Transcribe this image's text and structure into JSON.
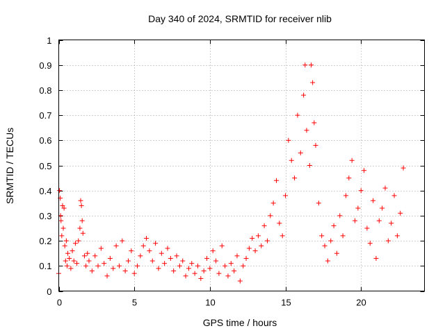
{
  "chart_data": {
    "type": "scatter",
    "title": "Day 340 of 2024, SRMTID for receiver nlib",
    "xlabel": "GPS time / hours",
    "ylabel": "SRMTID / TECUs",
    "xlim": [
      0,
      24.2
    ],
    "ylim": [
      0,
      1
    ],
    "xticks": [
      0,
      5,
      10,
      15,
      20
    ],
    "yticks": [
      0,
      0.1,
      0.2,
      0.3,
      0.4,
      0.5,
      0.6,
      0.7,
      0.8,
      0.9,
      1
    ],
    "xtick_labels": [
      "0",
      "5",
      "10",
      "15",
      "20"
    ],
    "ytick_labels": [
      "0",
      "0.1",
      "0.2",
      "0.3",
      "0.4",
      "0.5",
      "0.6",
      "0.7",
      "0.8",
      "0.9",
      "1"
    ],
    "grid": true,
    "marker": "+",
    "color": "#ff0000",
    "series": [
      {
        "name": "nlib",
        "points": [
          [
            0.0,
            0.07
          ],
          [
            0.05,
            0.4
          ],
          [
            0.1,
            0.37
          ],
          [
            0.12,
            0.3
          ],
          [
            0.15,
            0.28
          ],
          [
            0.2,
            0.22
          ],
          [
            0.25,
            0.34
          ],
          [
            0.3,
            0.25
          ],
          [
            0.35,
            0.33
          ],
          [
            0.4,
            0.18
          ],
          [
            0.45,
            0.12
          ],
          [
            0.5,
            0.2
          ],
          [
            0.55,
            0.1
          ],
          [
            0.6,
            0.15
          ],
          [
            0.7,
            0.13
          ],
          [
            0.8,
            0.09
          ],
          [
            0.9,
            0.16
          ],
          [
            1.0,
            0.12
          ],
          [
            1.1,
            0.19
          ],
          [
            1.2,
            0.11
          ],
          [
            1.3,
            0.2
          ],
          [
            1.4,
            0.25
          ],
          [
            1.45,
            0.36
          ],
          [
            1.5,
            0.34
          ],
          [
            1.55,
            0.28
          ],
          [
            1.6,
            0.23
          ],
          [
            1.7,
            0.14
          ],
          [
            1.8,
            0.1
          ],
          [
            1.9,
            0.15
          ],
          [
            2.0,
            0.12
          ],
          [
            2.2,
            0.08
          ],
          [
            2.4,
            0.14
          ],
          [
            2.6,
            0.1
          ],
          [
            2.8,
            0.17
          ],
          [
            3.0,
            0.11
          ],
          [
            3.2,
            0.06
          ],
          [
            3.4,
            0.13
          ],
          [
            3.6,
            0.09
          ],
          [
            3.8,
            0.18
          ],
          [
            4.0,
            0.1
          ],
          [
            4.2,
            0.2
          ],
          [
            4.4,
            0.08
          ],
          [
            4.6,
            0.12
          ],
          [
            4.8,
            0.16
          ],
          [
            5.0,
            0.07
          ],
          [
            5.2,
            0.1
          ],
          [
            5.4,
            0.14
          ],
          [
            5.6,
            0.18
          ],
          [
            5.8,
            0.21
          ],
          [
            6.0,
            0.16
          ],
          [
            6.2,
            0.12
          ],
          [
            6.4,
            0.19
          ],
          [
            6.6,
            0.09
          ],
          [
            6.8,
            0.15
          ],
          [
            7.0,
            0.11
          ],
          [
            7.2,
            0.17
          ],
          [
            7.4,
            0.13
          ],
          [
            7.6,
            0.08
          ],
          [
            7.8,
            0.14
          ],
          [
            8.0,
            0.1
          ],
          [
            8.2,
            0.12
          ],
          [
            8.4,
            0.06
          ],
          [
            8.6,
            0.09
          ],
          [
            8.8,
            0.11
          ],
          [
            9.0,
            0.07
          ],
          [
            9.2,
            0.1
          ],
          [
            9.4,
            0.05
          ],
          [
            9.6,
            0.08
          ],
          [
            9.8,
            0.13
          ],
          [
            10.0,
            0.09
          ],
          [
            10.2,
            0.16
          ],
          [
            10.4,
            0.12
          ],
          [
            10.6,
            0.07
          ],
          [
            10.8,
            0.18
          ],
          [
            11.0,
            0.1
          ],
          [
            11.2,
            0.06
          ],
          [
            11.4,
            0.11
          ],
          [
            11.6,
            0.08
          ],
          [
            11.8,
            0.14
          ],
          [
            12.0,
            0.04
          ],
          [
            12.2,
            0.1
          ],
          [
            12.4,
            0.13
          ],
          [
            12.6,
            0.17
          ],
          [
            12.8,
            0.21
          ],
          [
            13.0,
            0.16
          ],
          [
            13.2,
            0.22
          ],
          [
            13.4,
            0.18
          ],
          [
            13.6,
            0.26
          ],
          [
            13.8,
            0.2
          ],
          [
            14.0,
            0.3
          ],
          [
            14.2,
            0.35
          ],
          [
            14.4,
            0.44
          ],
          [
            14.6,
            0.27
          ],
          [
            14.8,
            0.22
          ],
          [
            15.0,
            0.38
          ],
          [
            15.2,
            0.6
          ],
          [
            15.4,
            0.52
          ],
          [
            15.6,
            0.45
          ],
          [
            15.8,
            0.7
          ],
          [
            16.0,
            0.55
          ],
          [
            16.2,
            0.78
          ],
          [
            16.3,
            0.9
          ],
          [
            16.4,
            0.64
          ],
          [
            16.6,
            0.5
          ],
          [
            16.7,
            0.9
          ],
          [
            16.8,
            0.83
          ],
          [
            16.9,
            0.67
          ],
          [
            17.0,
            0.58
          ],
          [
            17.2,
            0.35
          ],
          [
            17.4,
            0.22
          ],
          [
            17.6,
            0.18
          ],
          [
            17.8,
            0.12
          ],
          [
            18.0,
            0.2
          ],
          [
            18.2,
            0.26
          ],
          [
            18.4,
            0.15
          ],
          [
            18.6,
            0.3
          ],
          [
            18.8,
            0.22
          ],
          [
            19.0,
            0.38
          ],
          [
            19.2,
            0.45
          ],
          [
            19.4,
            0.52
          ],
          [
            19.6,
            0.28
          ],
          [
            19.8,
            0.33
          ],
          [
            20.0,
            0.4
          ],
          [
            20.2,
            0.48
          ],
          [
            20.4,
            0.25
          ],
          [
            20.6,
            0.19
          ],
          [
            20.8,
            0.36
          ],
          [
            21.0,
            0.13
          ],
          [
            21.2,
            0.28
          ],
          [
            21.4,
            0.33
          ],
          [
            21.6,
            0.41
          ],
          [
            21.8,
            0.2
          ],
          [
            22.0,
            0.27
          ],
          [
            22.2,
            0.38
          ],
          [
            22.4,
            0.22
          ],
          [
            22.6,
            0.31
          ],
          [
            22.8,
            0.49
          ]
        ]
      }
    ]
  }
}
